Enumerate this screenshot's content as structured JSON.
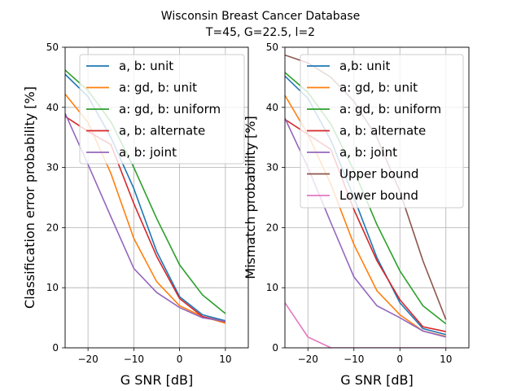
{
  "figure": {
    "title_line1": "Wisconsin Breast Cancer Database",
    "title_line2": "T=45, G=22.5, l=2"
  },
  "chart_data": [
    {
      "type": "line",
      "xlabel": "G SNR [dB]",
      "ylabel": "Classification error probability [%]",
      "xlim": [
        -25,
        15
      ],
      "ylim": [
        0,
        50
      ],
      "xticks": [
        -20,
        -10,
        0,
        10
      ],
      "yticks": [
        0,
        10,
        20,
        30,
        40,
        50
      ],
      "grid": true,
      "legend_position": "top-right",
      "x": [
        -25,
        -20,
        -15,
        -10,
        -5,
        0,
        5,
        10
      ],
      "series": [
        {
          "name": "a, b: unit",
          "color": "#1f77b4",
          "values": [
            45.5,
            41.8,
            35.0,
            26.5,
            16.0,
            8.5,
            5.5,
            4.5
          ]
        },
        {
          "name": "a: gd, b: unit",
          "color": "#ff7f0e",
          "values": [
            42.2,
            37.5,
            29.0,
            18.2,
            11.0,
            7.0,
            5.2,
            4.1
          ]
        },
        {
          "name": "a: gd, b: uniform",
          "color": "#2ca02c",
          "values": [
            46.2,
            42.8,
            37.6,
            30.0,
            21.5,
            13.8,
            8.8,
            5.7
          ]
        },
        {
          "name": "a, b: alternate",
          "color": "#d62728",
          "values": [
            38.5,
            36.0,
            33.8,
            24.0,
            15.2,
            8.2,
            5.2,
            4.3
          ]
        },
        {
          "name": "a, b: joint",
          "color": "#9467bd",
          "values": [
            39.0,
            30.5,
            21.8,
            13.2,
            9.2,
            6.7,
            5.0,
            4.4
          ]
        }
      ]
    },
    {
      "type": "line",
      "xlabel": "G SNR [dB]",
      "ylabel": "Mismatch probability [%]",
      "xlim": [
        -25,
        15
      ],
      "ylim": [
        0,
        50
      ],
      "xticks": [
        -20,
        -10,
        0,
        10
      ],
      "yticks": [
        0,
        10,
        20,
        30,
        40,
        50
      ],
      "grid": true,
      "legend_position": "top-right",
      "x": [
        -25,
        -20,
        -15,
        -10,
        -5,
        0,
        5,
        10
      ],
      "series": [
        {
          "name": "a,b: unit",
          "color": "#1f77b4",
          "values": [
            45.2,
            41.5,
            34.5,
            25.0,
            15.0,
            7.5,
            3.2,
            2.2
          ]
        },
        {
          "name": "a: gd, b: unit",
          "color": "#ff7f0e",
          "values": [
            42.0,
            35.5,
            27.2,
            17.2,
            9.5,
            5.5,
            2.8,
            1.9
          ]
        },
        {
          "name": "a: gd, b: uniform",
          "color": "#2ca02c",
          "values": [
            45.8,
            42.5,
            37.2,
            29.5,
            20.5,
            12.8,
            7.0,
            4.0
          ]
        },
        {
          "name": "a, b: alternate",
          "color": "#d62728",
          "values": [
            38.0,
            35.5,
            33.0,
            23.0,
            14.5,
            8.0,
            3.5,
            2.7
          ]
        },
        {
          "name": "a, b: joint",
          "color": "#9467bd",
          "values": [
            38.2,
            30.0,
            20.8,
            11.8,
            7.0,
            5.0,
            2.8,
            1.8
          ]
        },
        {
          "name": "Upper bound",
          "color": "#8c564b",
          "values": [
            48.7,
            47.4,
            45.0,
            41.0,
            35.0,
            26.0,
            14.5,
            4.7
          ]
        },
        {
          "name": "Lower bound",
          "color": "#e377c2",
          "values": [
            7.5,
            1.8,
            0.0,
            0.0,
            0.0,
            0.0,
            0.0,
            0.0
          ]
        }
      ]
    }
  ]
}
